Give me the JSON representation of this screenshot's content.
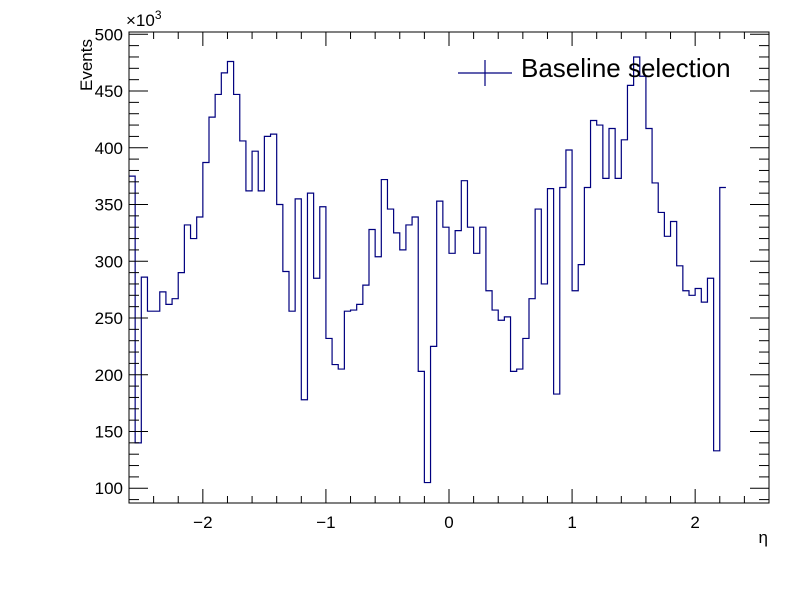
{
  "chart_data": {
    "type": "histogram",
    "xlabel": "η",
    "ylabel": "Events",
    "y_multiplier": "×10",
    "y_multiplier_exp": "3",
    "xlim": [
      -2.6,
      2.6
    ],
    "ylim": [
      87,
      502
    ],
    "x_ticks": [
      -2,
      -1,
      0,
      1,
      2
    ],
    "x_tick_labels": [
      "−2",
      "−1",
      "0",
      "1",
      "2"
    ],
    "y_ticks": [
      100,
      150,
      200,
      250,
      300,
      350,
      400,
      450,
      500
    ],
    "y_tick_labels": [
      "100",
      "150",
      "200",
      "250",
      "300",
      "350",
      "400",
      "450",
      "500"
    ],
    "grid": false,
    "legend_position": "top-right",
    "series": [
      {
        "name": "Baseline selection",
        "color": "#00007f",
        "bin_low": -2.6,
        "bin_width": 0.05,
        "values": [
          375,
          140,
          286,
          256,
          256,
          273,
          262,
          267,
          290,
          332,
          320,
          339,
          387,
          427,
          447,
          466,
          476,
          447,
          406,
          362,
          397,
          362,
          410,
          412,
          350,
          291,
          256,
          355,
          178,
          360,
          285,
          348,
          232,
          209,
          205,
          256,
          257,
          262,
          279,
          328,
          304,
          372,
          346,
          325,
          310,
          332,
          339,
          203,
          105,
          225,
          353,
          330,
          307,
          327,
          371,
          330,
          307,
          330,
          274,
          257,
          248,
          251,
          203,
          205,
          232,
          267,
          346,
          280,
          364,
          183,
          365,
          398,
          274,
          297,
          365,
          424,
          420,
          373,
          417,
          373,
          407,
          455,
          480,
          463,
          417,
          369,
          343,
          322,
          335,
          296,
          274,
          270,
          276,
          264,
          285,
          133,
          365
        ]
      }
    ]
  }
}
